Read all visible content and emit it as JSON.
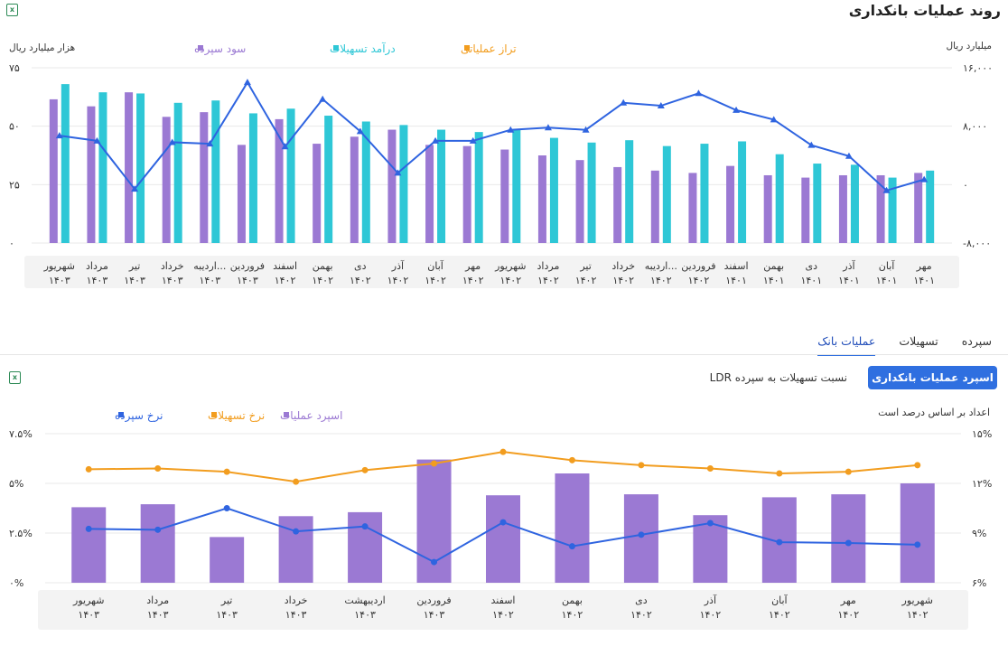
{
  "page": {
    "title": "روند عملیات بانکداری"
  },
  "icons": {
    "excel_icon": "excel-icon",
    "excel_glyph": "x"
  },
  "tabs": [
    {
      "label": "سپرده",
      "active": false
    },
    {
      "label": "تسهیلات",
      "active": false
    },
    {
      "label": "عملیات بانک",
      "active": true
    }
  ],
  "controls": {
    "spread_button": "اسپرد عملیات بانکداری",
    "ldr_button": "نسبت تسهیلات به سپرده LDR",
    "note": "اعداد بر اساس درصد است"
  },
  "colors": {
    "purple": "#9b79d3",
    "teal": "#2ec7d6",
    "orange": "#f29d1f",
    "blue": "#2f64e0",
    "grid": "#e9e9e9",
    "label_band": "#f3f3f3"
  },
  "chart_data": [
    {
      "type": "bar",
      "title": "",
      "left_axis_label": "هزار میلیارد ریال",
      "right_axis_label": "میلیارد ریال",
      "ylim_left": [
        0,
        75
      ],
      "ylim_right": [
        -8000,
        16000
      ],
      "yticks_left": [
        "0",
        "25",
        "50",
        "75"
      ],
      "yticks_right": [
        "-8,000",
        "0",
        "8,000",
        "16,000"
      ],
      "categories": [
        [
          "مهر",
          "1401"
        ],
        [
          "آبان",
          "1401"
        ],
        [
          "آذر",
          "1401"
        ],
        [
          "دی",
          "1401"
        ],
        [
          "بهمن",
          "1401"
        ],
        [
          "اسفند",
          "1401"
        ],
        [
          "فروردین",
          "1402"
        ],
        [
          "اردیبه...",
          "1402"
        ],
        [
          "خرداد",
          "1402"
        ],
        [
          "تیر",
          "1402"
        ],
        [
          "مرداد",
          "1402"
        ],
        [
          "شهریور",
          "1402"
        ],
        [
          "مهر",
          "1402"
        ],
        [
          "آبان",
          "1402"
        ],
        [
          "آذر",
          "1402"
        ],
        [
          "دی",
          "1402"
        ],
        [
          "بهمن",
          "1402"
        ],
        [
          "اسفند",
          "1402"
        ],
        [
          "فروردین",
          "1403"
        ],
        [
          "اردیبه...",
          "1403"
        ],
        [
          "خرداد",
          "1403"
        ],
        [
          "تیر",
          "1403"
        ],
        [
          "مرداد",
          "1403"
        ],
        [
          "شهریور",
          "1403"
        ]
      ],
      "series": [
        {
          "name": "سود سپرده",
          "kind": "bar",
          "axis": "left",
          "values": [
            30,
            29,
            29,
            28,
            29,
            33,
            30,
            31,
            32.5,
            35.5,
            37.5,
            40,
            41.5,
            42,
            48.5,
            45.5,
            42.5,
            53,
            42,
            56,
            54,
            64.5,
            58.5,
            61.5
          ]
        },
        {
          "name": "درآمد تسهیلات",
          "kind": "bar",
          "axis": "left",
          "values": [
            31,
            28,
            33.5,
            34,
            38,
            43.5,
            42.5,
            41.5,
            44,
            43,
            45,
            48.5,
            47.5,
            48.5,
            50.5,
            52,
            54.5,
            57.5,
            55.5,
            61,
            60,
            64,
            64.5,
            68
          ]
        },
        {
          "name": "تراز عملیاتی",
          "kind": "line",
          "axis": "right",
          "values": [
            700,
            -800,
            3900,
            5400,
            8900,
            10200,
            12500,
            10800,
            11200,
            7500,
            7800,
            7500,
            6000,
            6000,
            1600,
            7300,
            11700,
            5200,
            14000,
            5600,
            5800,
            -600,
            6000,
            6700
          ]
        }
      ],
      "legend": "top-left"
    },
    {
      "type": "bar",
      "title": "",
      "left_axis_label": "",
      "right_axis_label": "",
      "ylim_left": [
        0,
        7.5
      ],
      "ylim_right": [
        6,
        15
      ],
      "yticks_left": [
        "0%",
        "2.5%",
        "5%",
        "7.5%"
      ],
      "yticks_right": [
        "6%",
        "9%",
        "12%",
        "15%"
      ],
      "categories": [
        [
          "شهریور",
          "1402"
        ],
        [
          "مهر",
          "1402"
        ],
        [
          "آبان",
          "1402"
        ],
        [
          "آذر",
          "1402"
        ],
        [
          "دی",
          "1402"
        ],
        [
          "بهمن",
          "1402"
        ],
        [
          "اسفند",
          "1402"
        ],
        [
          "فروردین",
          "1403"
        ],
        [
          "اردیبهشت",
          "1403"
        ],
        [
          "خرداد",
          "1403"
        ],
        [
          "تیر",
          "1403"
        ],
        [
          "مرداد",
          "1403"
        ],
        [
          "شهریور",
          "1403"
        ]
      ],
      "series": [
        {
          "name": "اسپرد عملیات",
          "kind": "bar",
          "axis": "left",
          "values": [
            5.0,
            4.45,
            4.3,
            3.4,
            4.45,
            5.5,
            4.4,
            6.2,
            3.55,
            3.35,
            2.3,
            3.95,
            3.8
          ]
        },
        {
          "name": "نرخ تسهیلات",
          "kind": "line",
          "axis": "right",
          "values": [
            13.1,
            12.7,
            12.6,
            12.9,
            13.1,
            13.4,
            13.9,
            13.2,
            12.8,
            12.1,
            12.7,
            12.9,
            12.85
          ]
        },
        {
          "name": "نرخ سپرده",
          "kind": "line",
          "axis": "right",
          "values": [
            8.3,
            8.4,
            8.45,
            9.6,
            8.9,
            8.2,
            9.65,
            7.25,
            9.4,
            9.1,
            10.5,
            9.2,
            9.25
          ]
        }
      ],
      "legend": "top-left"
    }
  ]
}
